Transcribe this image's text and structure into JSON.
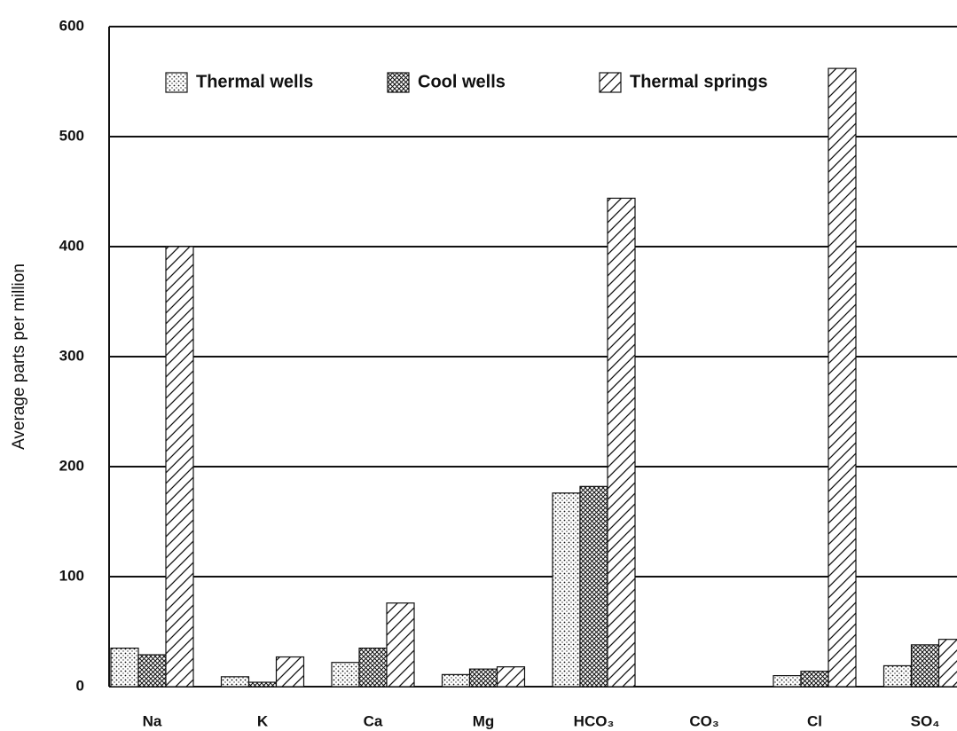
{
  "chart_data": {
    "type": "bar",
    "y_label": "Average parts per million",
    "categories": [
      "Na",
      "K",
      "Ca",
      "Mg",
      "HCO₃",
      "CO₃",
      "Cl",
      "SO₄"
    ],
    "series": [
      {
        "name": "Thermal wells",
        "pattern": "dots",
        "color": "#111111",
        "values": [
          35,
          9,
          22,
          11,
          176,
          0,
          10,
          19
        ]
      },
      {
        "name": "Cool wells",
        "pattern": "crosshatch",
        "color": "#111111",
        "values": [
          29,
          4,
          35,
          16,
          182,
          0,
          14,
          38
        ]
      },
      {
        "name": "Thermal springs",
        "pattern": "hatch",
        "color": "#111111",
        "values": [
          400,
          27,
          76,
          18,
          444,
          0,
          562,
          43
        ]
      }
    ],
    "ylim": [
      0,
      600
    ],
    "yticks": [
      0,
      100,
      200,
      300,
      400,
      500,
      600
    ],
    "grid": true,
    "legend": "top"
  }
}
